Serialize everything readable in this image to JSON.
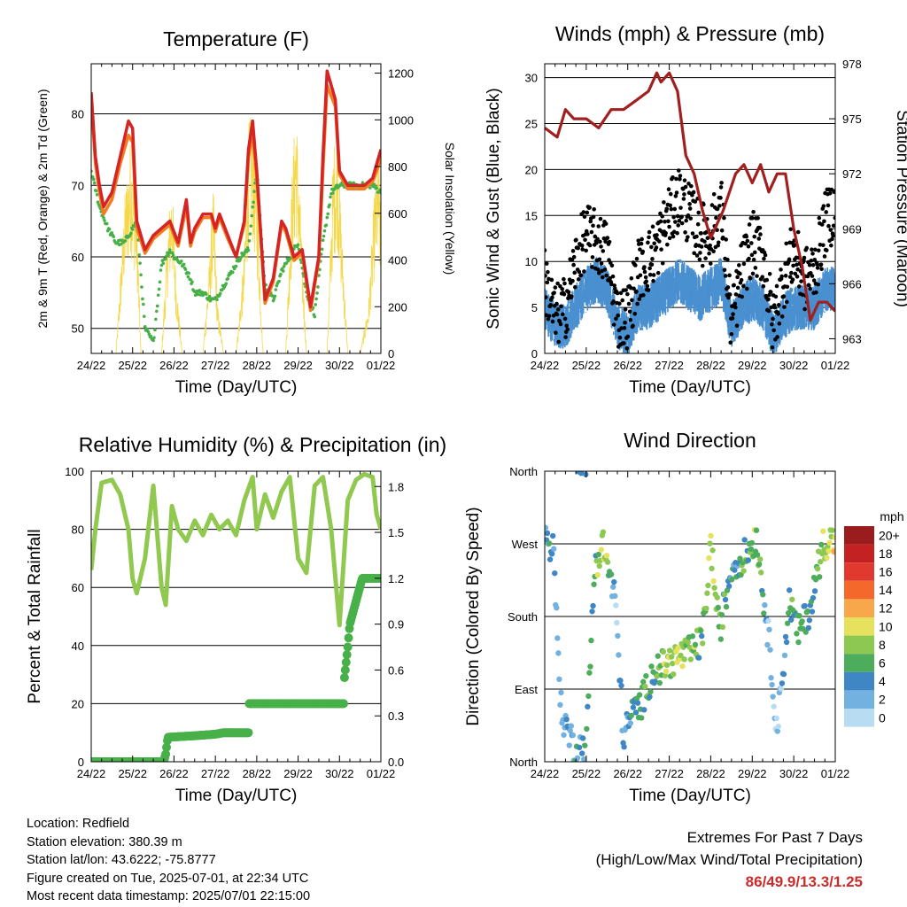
{
  "colors": {
    "temp_2m": "#d42424",
    "temp_9m": "#f47c20",
    "dewpoint": "#48b048",
    "insolation": "#f5d84a",
    "wind": "#4a90d0",
    "gust": "#000000",
    "pressure": "#a02020",
    "rh": "#90c850",
    "rain": "#48b048",
    "extremes": "#cc2b2b"
  },
  "chart_data": [
    {
      "id": "temperature",
      "type": "line",
      "title": "Temperature (F)",
      "xlabel": "Time (Day/UTC)",
      "ylabel": "2m & 9m T (Red, Orange) & 2m Td (Green)",
      "y2label": "Solar Insolation (Yellow)",
      "x_tick_labels": [
        "24/22",
        "25/22",
        "26/22",
        "27/22",
        "28/22",
        "29/22",
        "30/22",
        "01/22"
      ],
      "xlim": [
        0,
        7
      ],
      "ylim": [
        46.5,
        87
      ],
      "y_ticks": [
        50,
        60,
        70,
        80
      ],
      "y2lim": [
        0,
        1240
      ],
      "y2_ticks": [
        0,
        200,
        400,
        600,
        800,
        1000,
        1200
      ],
      "series": [
        {
          "name": "2m T",
          "axis": "left",
          "x": [
            0,
            0.1,
            0.2,
            0.3,
            0.5,
            0.7,
            0.9,
            1.0,
            1.1,
            1.3,
            1.5,
            1.7,
            1.9,
            2.1,
            2.3,
            2.4,
            2.5,
            2.7,
            2.9,
            3.0,
            3.1,
            3.3,
            3.5,
            3.7,
            3.8,
            3.9,
            4.0,
            4.2,
            4.4,
            4.6,
            4.7,
            4.9,
            5.1,
            5.3,
            5.5,
            5.6,
            5.7,
            5.9,
            6.0,
            6.2,
            6.4,
            6.6,
            6.8,
            6.9,
            7.0
          ],
          "y": [
            83,
            74,
            70,
            67,
            69,
            74,
            79,
            78,
            65,
            61,
            63,
            64,
            65,
            62,
            68,
            62,
            64,
            66,
            66,
            64,
            66,
            63,
            60,
            65,
            75,
            79,
            72,
            54,
            57,
            65,
            64,
            60,
            61,
            53,
            60,
            74,
            86,
            82,
            72,
            70,
            70,
            70,
            71,
            73,
            75
          ]
        },
        {
          "name": "9m T",
          "axis": "left",
          "x": [
            0,
            0.1,
            0.2,
            0.3,
            0.5,
            0.7,
            0.9,
            1.0,
            1.1,
            1.3,
            1.5,
            1.7,
            1.9,
            2.1,
            2.3,
            2.4,
            2.5,
            2.7,
            2.9,
            3.0,
            3.1,
            3.3,
            3.5,
            3.7,
            3.8,
            3.9,
            4.0,
            4.2,
            4.4,
            4.6,
            4.7,
            4.9,
            5.1,
            5.3,
            5.5,
            5.6,
            5.7,
            5.9,
            6.0,
            6.2,
            6.4,
            6.6,
            6.8,
            6.9,
            7.0
          ],
          "y": [
            82,
            73,
            69,
            66,
            68,
            73,
            77,
            76,
            64,
            60.5,
            62.5,
            63.5,
            64.5,
            61.5,
            67,
            61.5,
            63.5,
            65.5,
            65.5,
            63.5,
            65.5,
            62.5,
            60,
            64.5,
            74,
            77,
            71,
            53.5,
            56.5,
            64.5,
            63.5,
            59.5,
            60.5,
            52.5,
            59.5,
            72,
            84,
            81,
            71.5,
            69.5,
            69.5,
            69.5,
            70.5,
            72,
            74
          ]
        },
        {
          "name": "2m Td",
          "axis": "left",
          "x": [
            0,
            0.2,
            0.4,
            0.6,
            0.8,
            1.0,
            1.1,
            1.3,
            1.5,
            1.7,
            1.9,
            2.0,
            2.2,
            2.4,
            2.5,
            2.7,
            2.9,
            3.0,
            3.2,
            3.4,
            3.6,
            3.8,
            3.9,
            4.0,
            4.2,
            4.4,
            4.6,
            4.8,
            5.0,
            5.2,
            5.4,
            5.6,
            5.8,
            6.0,
            6.2,
            6.4,
            6.6,
            6.8,
            7.0
          ],
          "y": [
            72,
            67,
            64,
            62,
            62,
            64,
            65,
            50,
            48,
            59,
            61,
            60,
            59,
            57,
            55,
            55,
            54,
            54,
            56,
            58,
            60,
            61,
            67,
            72,
            56,
            54,
            58,
            60,
            62,
            55,
            52,
            62,
            69,
            70,
            70,
            70,
            70,
            70,
            69
          ]
        },
        {
          "name": "Solar Insolation",
          "axis": "right",
          "x": [
            0,
            0.6,
            0.8,
            0.95,
            1.1,
            1.2,
            1.5,
            1.7,
            1.85,
            1.95,
            2.05,
            2.2,
            2.5,
            2.7,
            2.85,
            2.95,
            3.05,
            3.2,
            3.5,
            3.7,
            3.8,
            3.9,
            4.0,
            4.15,
            4.5,
            4.7,
            4.85,
            4.95,
            5.05,
            5.2,
            5.5,
            5.7,
            5.85,
            5.95,
            6.05,
            6.2,
            6.5,
            6.7,
            6.85,
            6.95,
            7.0
          ],
          "y": [
            0,
            0,
            600,
            850,
            600,
            0,
            0,
            0,
            500,
            700,
            300,
            0,
            0,
            0,
            350,
            650,
            200,
            0,
            0,
            400,
            900,
            950,
            700,
            0,
            0,
            0,
            700,
            1000,
            600,
            0,
            0,
            0,
            800,
            900,
            500,
            0,
            0,
            200,
            650,
            800,
            500
          ]
        }
      ]
    },
    {
      "id": "winds_pressure",
      "type": "scatter",
      "title": "Winds (mph) & Pressure (mb)",
      "xlabel": "Time (Day/UTC)",
      "ylabel": "Sonic Wind & Gust (Blue, Black)",
      "y2label": "Station Pressure (Maroon)",
      "x_tick_labels": [
        "24/22",
        "25/22",
        "26/22",
        "27/22",
        "28/22",
        "29/22",
        "30/22",
        "01/22"
      ],
      "xlim": [
        0,
        7
      ],
      "ylim": [
        0,
        31.5
      ],
      "y_ticks": [
        0,
        5,
        10,
        15,
        20,
        25,
        30
      ],
      "y2lim": [
        962.2,
        978
      ],
      "y2_ticks": [
        963,
        966,
        969,
        972,
        975,
        978
      ],
      "series": [
        {
          "name": "Sonic Wind",
          "axis": "left",
          "x": [
            0,
            0.25,
            0.5,
            0.75,
            1.0,
            1.25,
            1.5,
            1.75,
            2.0,
            2.25,
            2.5,
            2.75,
            3.0,
            3.25,
            3.5,
            3.75,
            4.0,
            4.25,
            4.5,
            4.75,
            5.0,
            5.25,
            5.5,
            5.75,
            6.0,
            6.25,
            6.5,
            6.75,
            7.0
          ],
          "y": [
            5,
            3,
            3,
            5,
            7,
            8,
            7,
            3,
            2,
            5,
            5,
            6,
            7,
            8,
            7,
            6,
            7,
            8,
            3,
            5,
            6,
            5,
            2,
            4,
            5,
            5,
            5,
            7,
            7
          ]
        },
        {
          "name": "Gust",
          "axis": "left",
          "x": [
            0,
            0.25,
            0.5,
            0.75,
            1.0,
            1.25,
            1.5,
            1.75,
            2.0,
            2.25,
            2.5,
            2.75,
            3.0,
            3.25,
            3.5,
            3.75,
            4.0,
            4.25,
            4.5,
            4.75,
            5.0,
            5.25,
            5.5,
            5.75,
            6.0,
            6.25,
            6.5,
            6.75,
            7.0
          ],
          "y": [
            8,
            4,
            5,
            10,
            13,
            12,
            11,
            4,
            4,
            9,
            10,
            12,
            15,
            17,
            15,
            13,
            13,
            16,
            3,
            9,
            12,
            11,
            3,
            8,
            11,
            8,
            9,
            14,
            16
          ]
        },
        {
          "name": "Station Pressure",
          "axis": "right",
          "x": [
            0,
            0.3,
            0.5,
            0.7,
            1.0,
            1.3,
            1.6,
            1.9,
            2.2,
            2.5,
            2.7,
            2.8,
            3.0,
            3.2,
            3.4,
            3.6,
            3.8,
            4.0,
            4.3,
            4.6,
            4.8,
            5.0,
            5.2,
            5.4,
            5.6,
            5.8,
            6.0,
            6.2,
            6.4,
            6.6,
            6.8,
            7.0
          ],
          "y": [
            974.5,
            974,
            975.5,
            975,
            975,
            974.5,
            975.5,
            975.5,
            976,
            976.5,
            977.5,
            977,
            977.5,
            976.5,
            973,
            972,
            970,
            968.5,
            970,
            972,
            972.5,
            971.5,
            972.5,
            971,
            972,
            972,
            969,
            967,
            964,
            965,
            965,
            964.5
          ]
        }
      ]
    },
    {
      "id": "rh_precip",
      "type": "line",
      "title": "Relative Humidity (%) & Precipitation (in)",
      "xlabel": "Time (Day/UTC)",
      "ylabel": "Percent & Total Rainfall",
      "x_tick_labels": [
        "24/22",
        "25/22",
        "26/22",
        "27/22",
        "28/22",
        "29/22",
        "30/22",
        "01/22"
      ],
      "xlim": [
        0,
        7
      ],
      "ylim": [
        0,
        100
      ],
      "y_ticks": [
        0,
        20,
        40,
        60,
        80,
        100
      ],
      "y2lim": [
        0,
        1.9
      ],
      "y2_ticks": [
        0.0,
        0.3,
        0.6,
        0.9,
        1.2,
        1.5,
        1.8
      ],
      "y2_tick_labels": [
        "0.0",
        "0.3",
        "0.6",
        "0.9",
        "1.2",
        "1.5",
        "1.8"
      ],
      "series": [
        {
          "name": "Relative Humidity",
          "axis": "left",
          "x": [
            0,
            0.1,
            0.25,
            0.5,
            0.7,
            0.9,
            1.0,
            1.1,
            1.3,
            1.5,
            1.7,
            1.8,
            1.95,
            2.1,
            2.3,
            2.5,
            2.7,
            2.9,
            3.1,
            3.3,
            3.5,
            3.7,
            3.9,
            4.0,
            4.2,
            4.4,
            4.6,
            4.8,
            5.0,
            5.2,
            5.4,
            5.6,
            5.8,
            6.0,
            6.2,
            6.4,
            6.6,
            6.8,
            6.9,
            7.0
          ],
          "y": [
            66,
            80,
            96,
            97,
            92,
            80,
            63,
            58,
            70,
            95,
            60,
            54,
            88,
            80,
            76,
            83,
            78,
            85,
            80,
            83,
            78,
            90,
            98,
            80,
            92,
            84,
            93,
            98,
            70,
            65,
            95,
            98,
            80,
            47,
            90,
            97,
            99,
            98,
            85,
            80
          ]
        },
        {
          "name": "Total Rainfall",
          "axis": "right",
          "x": [
            0,
            1.75,
            1.8,
            1.85,
            2.5,
            3.0,
            3.2,
            3.8,
            3.82,
            4.0,
            4.5,
            5.0,
            5.5,
            6.1,
            6.12,
            6.2,
            6.25,
            6.3,
            6.4,
            6.5,
            6.55,
            7.0
          ],
          "y": [
            0,
            0,
            0.05,
            0.16,
            0.17,
            0.18,
            0.19,
            0.19,
            0.38,
            0.38,
            0.38,
            0.38,
            0.38,
            0.38,
            0.55,
            0.75,
            0.9,
            0.95,
            1.05,
            1.15,
            1.2,
            1.2
          ]
        }
      ]
    },
    {
      "id": "wind_direction",
      "type": "scatter",
      "title": "Wind Direction",
      "xlabel": "Time (Day/UTC)",
      "ylabel": "Direction (Colored By Speed)",
      "x_tick_labels": [
        "24/22",
        "25/22",
        "26/22",
        "27/22",
        "28/22",
        "29/22",
        "30/22",
        "01/22"
      ],
      "xlim": [
        0,
        7
      ],
      "ylim": [
        0,
        360
      ],
      "y_tick_labels": [
        "North",
        "East",
        "South",
        "West",
        "North"
      ],
      "y_ticks": [
        0,
        90,
        180,
        270,
        360
      ],
      "legend": {
        "title": "mph",
        "labels": [
          "20+",
          "18",
          "16",
          "14",
          "12",
          "10",
          "8",
          "6",
          "4",
          "2",
          "0"
        ],
        "colors": [
          "#9b1c1c",
          "#c42222",
          "#e03a2e",
          "#f4692b",
          "#f8a84a",
          "#e6e25e",
          "#8dc952",
          "#4dad5c",
          "#3e86c4",
          "#73b1e0",
          "#b8dcf2"
        ],
        "placement": "right"
      },
      "x": [
        0,
        0.2,
        0.4,
        0.7,
        1.0,
        1.2,
        1.4,
        1.7,
        1.9,
        2.1,
        2.3,
        2.6,
        2.9,
        3.2,
        3.5,
        3.8,
        4.0,
        4.2,
        4.5,
        4.9,
        5.1,
        5.4,
        5.6,
        5.9,
        6.1,
        6.4,
        6.7,
        6.9,
        7.0
      ],
      "y": [
        280,
        265,
        60,
        20,
        15,
        240,
        270,
        200,
        30,
        60,
        70,
        110,
        120,
        130,
        135,
        150,
        270,
        160,
        240,
        260,
        280,
        150,
        40,
        200,
        160,
        190,
        270,
        275,
        270
      ],
      "speed": [
        3,
        4,
        2,
        3,
        4,
        6,
        10,
        2,
        3,
        4,
        5,
        6,
        8,
        9,
        8,
        6,
        9,
        7,
        4,
        6,
        8,
        2,
        1,
        5,
        6,
        4,
        9,
        10,
        10
      ]
    }
  ],
  "metadata_text": {
    "location": "Location: Redfield",
    "elevation": "Station elevation: 380.39 m",
    "latlon": "Station lat/lon: 43.6222; -75.8777",
    "created": "Figure created on Tue, 2025-07-01, at 22:34 UTC",
    "recent": "Most recent data timestamp: 2025/07/01 22:15:00"
  },
  "extremes": {
    "heading": "Extremes For Past 7 Days",
    "subheading": "(High/Low/Max Wind/Total Precipitation)",
    "values": "86/49.9/13.3/1.25"
  }
}
